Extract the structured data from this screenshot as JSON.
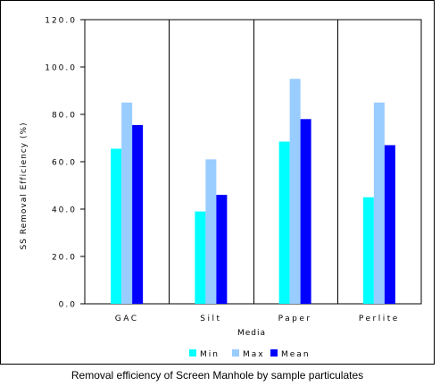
{
  "chart_data": {
    "type": "bar",
    "categories": [
      "GAC",
      "Silt",
      "Paper",
      "Perlite"
    ],
    "series": [
      {
        "name": "Min",
        "values": [
          65.5,
          39.0,
          68.5,
          45.0
        ],
        "color": "#00ffff"
      },
      {
        "name": "Max",
        "values": [
          85.0,
          61.0,
          95.0,
          85.0
        ],
        "color": "#99ccff"
      },
      {
        "name": "Mean",
        "values": [
          75.5,
          46.0,
          78.0,
          67.0
        ],
        "color": "#0000ff"
      }
    ],
    "ylabel": "SS Removal Efficiency (%)",
    "xlabel": "Media",
    "ylim": [
      0,
      120
    ],
    "yticks": [
      "0.0",
      "20.0",
      "40.0",
      "60.0",
      "80.0",
      "100.0",
      "120.0"
    ],
    "grid": false,
    "category_separators": true,
    "legend_position": "bottom"
  },
  "caption": "Removal efficiency of Screen Manhole by sample particulates"
}
